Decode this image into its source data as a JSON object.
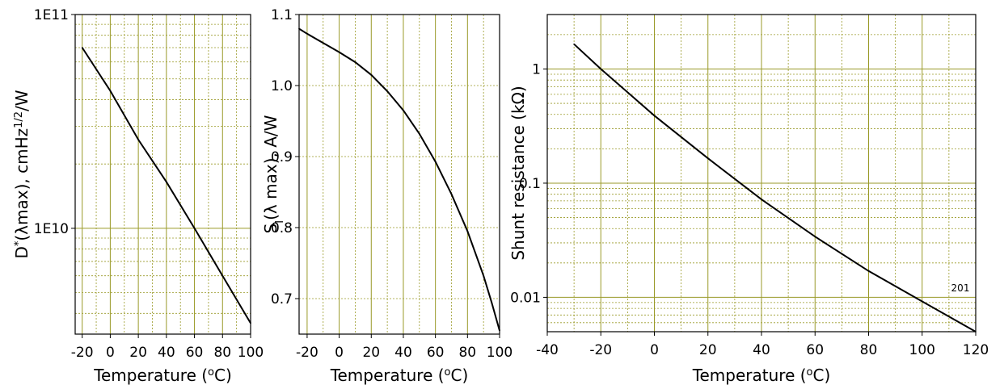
{
  "chart_data": [
    {
      "type": "line",
      "xlabel": "Temperature (°C)",
      "ylabel": "D*(λmax), cmHz1/2/W",
      "ylabel_parts": [
        "D",
        "*",
        "(λmax), cmHz",
        "1/2",
        "/W"
      ],
      "xlabel_parts": [
        "Temperature (",
        "o",
        "C)"
      ],
      "xlim": [
        -25,
        100
      ],
      "ylim": [
        3200000000.0,
        100000000000.0
      ],
      "yscale": "log",
      "x_ticks": [
        -20,
        0,
        20,
        40,
        60,
        80,
        100
      ],
      "x_tick_labels": [
        "-20",
        "0",
        "20",
        "40",
        "60",
        "80",
        "100"
      ],
      "y_ticks": [
        10000000000.0,
        100000000000.0
      ],
      "y_tick_labels": [
        "1E10",
        "1E11"
      ],
      "grid": true,
      "series": [
        {
          "x": [
            -20,
            0,
            20,
            40,
            60,
            80,
            100
          ],
          "y": [
            70000000000.0,
            44000000000.0,
            26000000000.0,
            16500000000.0,
            10000000000.0,
            6000000000.0,
            3600000000.0
          ]
        }
      ]
    },
    {
      "type": "line",
      "xlabel": "Temperature (°C)",
      "ylabel": "SI(λ max), A/W",
      "ylabel_parts": [
        "S",
        "I",
        "(λ max), A/W"
      ],
      "xlabel_parts": [
        "Temperature (",
        "o",
        "C)"
      ],
      "xlim": [
        -25,
        100
      ],
      "ylim": [
        0.65,
        1.1
      ],
      "yscale": "linear",
      "x_ticks": [
        -20,
        0,
        20,
        40,
        60,
        80,
        100
      ],
      "x_tick_labels": [
        "-20",
        "0",
        "20",
        "40",
        "60",
        "80",
        "100"
      ],
      "y_ticks": [
        0.7,
        0.8,
        0.9,
        1.0,
        1.1
      ],
      "y_tick_labels": [
        "0.7",
        "0.8",
        "0.9",
        "1.0",
        "1.1"
      ],
      "grid": true,
      "series": [
        {
          "x": [
            -25,
            -20,
            -10,
            0,
            10,
            20,
            30,
            40,
            50,
            60,
            70,
            80,
            90,
            95,
            100
          ],
          "y": [
            1.08,
            1.073,
            1.06,
            1.047,
            1.033,
            1.015,
            0.992,
            0.965,
            0.932,
            0.893,
            0.847,
            0.795,
            0.732,
            0.695,
            0.655
          ]
        }
      ]
    },
    {
      "type": "line",
      "xlabel": "Temperature (°C)",
      "ylabel": "Shunt resistance (kΩ)",
      "xlabel_parts": [
        "Temperature (",
        "o",
        "C)"
      ],
      "xlim": [
        -40,
        120
      ],
      "ylim": [
        0.005,
        3
      ],
      "yscale": "log",
      "x_ticks": [
        -40,
        -20,
        0,
        20,
        40,
        60,
        80,
        100,
        120
      ],
      "x_tick_labels": [
        "-40",
        "-20",
        "0",
        "20",
        "40",
        "60",
        "80",
        "100",
        "120"
      ],
      "y_ticks": [
        0.01,
        0.1,
        1
      ],
      "y_tick_labels": [
        "0.01",
        "0.1",
        "1"
      ],
      "grid": true,
      "annotations": [
        "201"
      ],
      "series": [
        {
          "x": [
            -30,
            -20,
            0,
            20,
            40,
            60,
            80,
            100,
            120
          ],
          "y": [
            1.65,
            1.0,
            0.39,
            0.165,
            0.072,
            0.034,
            0.017,
            0.0092,
            0.005
          ]
        }
      ]
    }
  ]
}
